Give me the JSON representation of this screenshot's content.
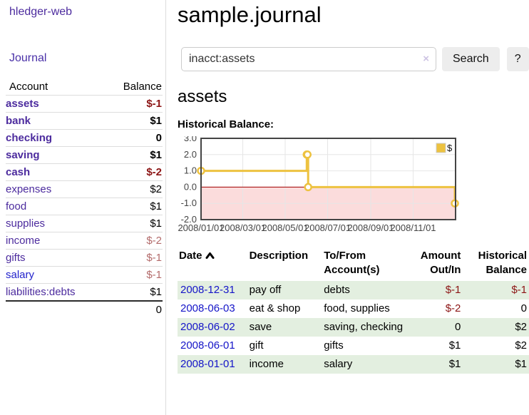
{
  "app": {
    "brand": "hledger-web",
    "nav_journal": "Journal"
  },
  "colors": {
    "link_purple": "#4c2b9e",
    "link_blue": "#2222cc",
    "negative_strong": "#8c1515",
    "negative_soft": "#b36b6b",
    "row_highlight_green": "#e3efe0",
    "chart_series_gold": "#edc240",
    "chart_negative_region_pink": "#fbdcdc",
    "chart_zero_line_red": "#a40000"
  },
  "sidebar": {
    "header": {
      "account": "Account",
      "balance": "Balance"
    },
    "accounts": [
      {
        "name": "assets",
        "level": 1,
        "in_query": true,
        "balance": "$-1",
        "balance_tone": "negative-strong"
      },
      {
        "name": "bank",
        "level": 2,
        "in_query": true,
        "balance": "$1",
        "balance_tone": "normal"
      },
      {
        "name": "checking",
        "level": 3,
        "in_query": true,
        "balance": "0",
        "balance_tone": "normal"
      },
      {
        "name": "saving",
        "level": 3,
        "in_query": true,
        "balance": "$1",
        "balance_tone": "normal"
      },
      {
        "name": "cash",
        "level": 2,
        "in_query": true,
        "balance": "$-2",
        "balance_tone": "negative-strong"
      },
      {
        "name": "expenses",
        "level": 1,
        "in_query": false,
        "balance": "$2",
        "balance_tone": "normal"
      },
      {
        "name": "food",
        "level": 2,
        "in_query": false,
        "balance": "$1",
        "balance_tone": "normal"
      },
      {
        "name": "supplies",
        "level": 2,
        "in_query": false,
        "balance": "$1",
        "balance_tone": "normal"
      },
      {
        "name": "income",
        "level": 1,
        "in_query": false,
        "balance": "$-2",
        "balance_tone": "negative-soft"
      },
      {
        "name": "gifts",
        "level": 2,
        "in_query": false,
        "balance": "$-1",
        "balance_tone": "negative-soft"
      },
      {
        "name": "salary",
        "level": 2,
        "in_query": false,
        "balance": "$-1",
        "balance_tone": "negative-soft"
      },
      {
        "name": "liabilities:debts",
        "level": 1,
        "in_query": false,
        "balance": "$1",
        "balance_tone": "normal"
      }
    ],
    "total": "0"
  },
  "header": {
    "title": "sample.journal"
  },
  "search": {
    "value": "inacct:assets",
    "clear_icon": "×",
    "button_label": "Search",
    "help_label": "?"
  },
  "account_page": {
    "title": "assets",
    "chart_label": "Historical Balance:"
  },
  "chart_data": {
    "type": "line",
    "step": true,
    "title": "Historical Balance:",
    "series": [
      {
        "name": "$",
        "color": "#edc240",
        "points": [
          {
            "date": "2008-01-01",
            "day": 0,
            "value": 1
          },
          {
            "date": "2008-06-01",
            "day": 152,
            "value": 2
          },
          {
            "date": "2008-06-02",
            "day": 153,
            "value": 2
          },
          {
            "date": "2008-06-03",
            "day": 154,
            "value": 0
          },
          {
            "date": "2008-12-31",
            "day": 365,
            "value": -1
          }
        ]
      }
    ],
    "xlim_days": [
      0,
      366
    ],
    "xticks": [
      {
        "day": 0,
        "label": "2008/01/01"
      },
      {
        "day": 60,
        "label": "2008/03/01"
      },
      {
        "day": 121,
        "label": "2008/05/01"
      },
      {
        "day": 182,
        "label": "2008/07/01"
      },
      {
        "day": 244,
        "label": "2008/09/01"
      },
      {
        "day": 305,
        "label": "2008/11/01"
      }
    ],
    "ylim": [
      -2,
      3
    ],
    "yticks": [
      {
        "value": 3,
        "label": "3.0"
      },
      {
        "value": 2,
        "label": "2.0"
      },
      {
        "value": 1,
        "label": "1.0"
      },
      {
        "value": 0,
        "label": "0.0"
      },
      {
        "value": -1,
        "label": "-1.0"
      },
      {
        "value": -2,
        "label": "-2.0"
      }
    ],
    "legend": {
      "position": "top-right",
      "label": "$"
    },
    "grid": true
  },
  "register": {
    "columns": {
      "date": "Date",
      "description": "Description",
      "accounts": "To/From Account(s)",
      "amount": "Amount Out/In",
      "balance": "Historical Balance"
    },
    "sort_icon": "chevron-up",
    "rows": [
      {
        "date": "2008-12-31",
        "description": "pay off",
        "accounts": "debts",
        "amount": "$-1",
        "balance": "$-1"
      },
      {
        "date": "2008-06-03",
        "description": "eat & shop",
        "accounts": "food, supplies",
        "amount": "$-2",
        "balance": "0"
      },
      {
        "date": "2008-06-02",
        "description": "save",
        "accounts": "saving, checking",
        "amount": "0",
        "balance": "$2"
      },
      {
        "date": "2008-06-01",
        "description": "gift",
        "accounts": "gifts",
        "amount": "$1",
        "balance": "$2"
      },
      {
        "date": "2008-01-01",
        "description": "income",
        "accounts": "salary",
        "amount": "$1",
        "balance": "$1"
      }
    ]
  }
}
